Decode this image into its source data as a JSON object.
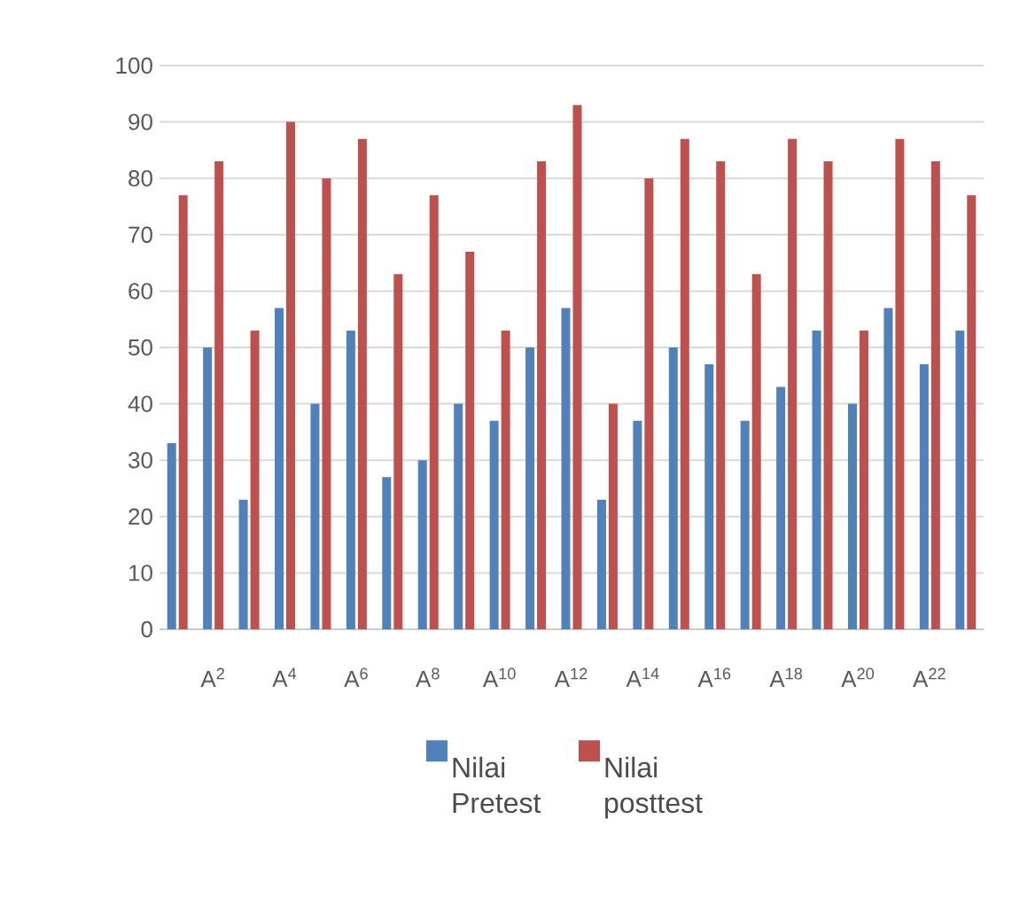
{
  "chart_data": {
    "type": "bar",
    "categories": [
      null,
      "A$^{2}$",
      null,
      "A$^{4}$",
      null,
      "A$^{6}$",
      null,
      "A$^{8}$",
      null,
      "A$^{10}$",
      null,
      "A$^{12}$",
      null,
      "A$^{14}$",
      null,
      "A$^{16}$",
      null,
      "A$^{18}$",
      null,
      "A$^{20}$",
      null,
      "A$^{22}$",
      null
    ],
    "series": [
      {
        "name": "Nilai Pretest",
        "color": "#4f81bd",
        "values": [
          33,
          50,
          23,
          57,
          40,
          53,
          27,
          30,
          40,
          37,
          50,
          57,
          23,
          37,
          50,
          47,
          37,
          43,
          53,
          40,
          57,
          47,
          53
        ]
      },
      {
        "name": "Nilai posttest",
        "color": "#c0504d",
        "values": [
          77,
          83,
          53,
          90,
          80,
          87,
          63,
          77,
          67,
          53,
          83,
          93,
          40,
          80,
          87,
          83,
          63,
          87,
          83,
          53,
          87,
          83,
          77
        ]
      }
    ],
    "ylim": [
      0,
      100
    ],
    "yticks": [
      0,
      10,
      20,
      30,
      40,
      50,
      60,
      70,
      80,
      90,
      100
    ],
    "grid": "y",
    "legend": "bottom"
  }
}
